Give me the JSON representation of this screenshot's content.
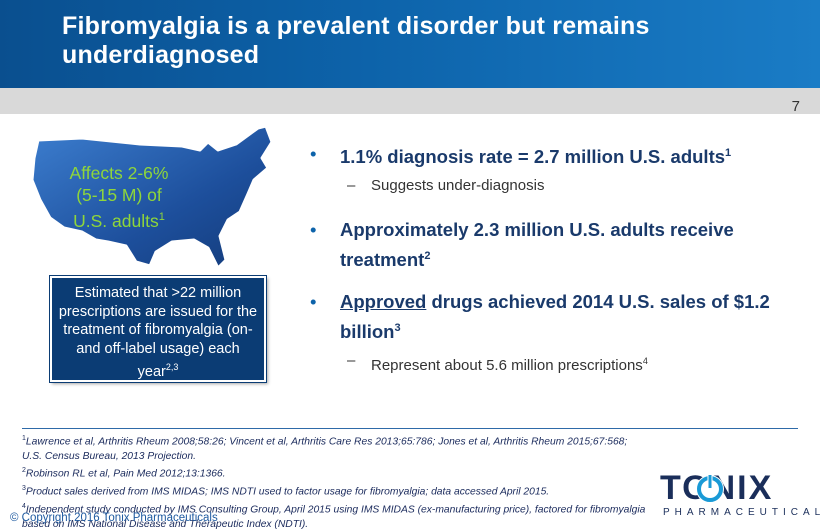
{
  "header": {
    "title": "Fibromyalgia is a prevalent disorder but remains underdiagnosed"
  },
  "page_number": "7",
  "map_callout": {
    "line1": "Affects 2-6%",
    "line2": "(5-15 M) of",
    "line3": "U.S. adults",
    "line3_sup": "1"
  },
  "estimate_box": {
    "text": "Estimated that >22 million prescriptions are issued for the treatment of fibromyalgia (on- and off-label usage) each year",
    "sup": "2,3"
  },
  "bullets": [
    {
      "text": "1.1% diagnosis rate = 2.7 million U.S. adults",
      "sup": "1",
      "sub": [
        "Suggests under-diagnosis"
      ]
    },
    {
      "text": "Approximately 2.3 million U.S. adults receive treatment",
      "sup": "2",
      "sub": []
    },
    {
      "underlined": "Approved",
      "text": " drugs achieved 2014 U.S. sales of $1.2 billion",
      "sup": "3",
      "sub": [
        "Represent about 5.6 million prescriptions"
      ],
      "sub_sup": "4"
    }
  ],
  "footnotes": [
    {
      "num": "1",
      "text": "Lawrence et al, Arthritis Rheum 2008;58:26; Vincent et al, Arthritis Care Res 2013;65:786; Jones et al, Arthritis Rheum 2015;67:568; U.S. Census Bureau, 2013 Projection."
    },
    {
      "num": "2",
      "text": "Robinson RL et al, Pain Med 2012;13:1366."
    },
    {
      "num": "3",
      "text": "Product sales derived from IMS MIDAS; IMS NDTI used to factor usage for fibromyalgia; data accessed April 2015."
    },
    {
      "num": "4",
      "text": "Independent study conducted by IMS Consulting Group, April 2015 using IMS MIDAS (ex-manufacturing price), factored for fibromyalgia based on IMS National Disease and Therapeutic Index (NDTI)."
    }
  ],
  "copyright": "© Copyright 2016 Tonix Pharmaceuticals",
  "logo": {
    "word": "TONIX",
    "sub": "PHARMACEUTICALS"
  },
  "colors": {
    "header_blue": "#0d63aa",
    "navy": "#0b3c74",
    "callout_green": "#8fd63a",
    "bullet_text": "#1a3a6b"
  }
}
